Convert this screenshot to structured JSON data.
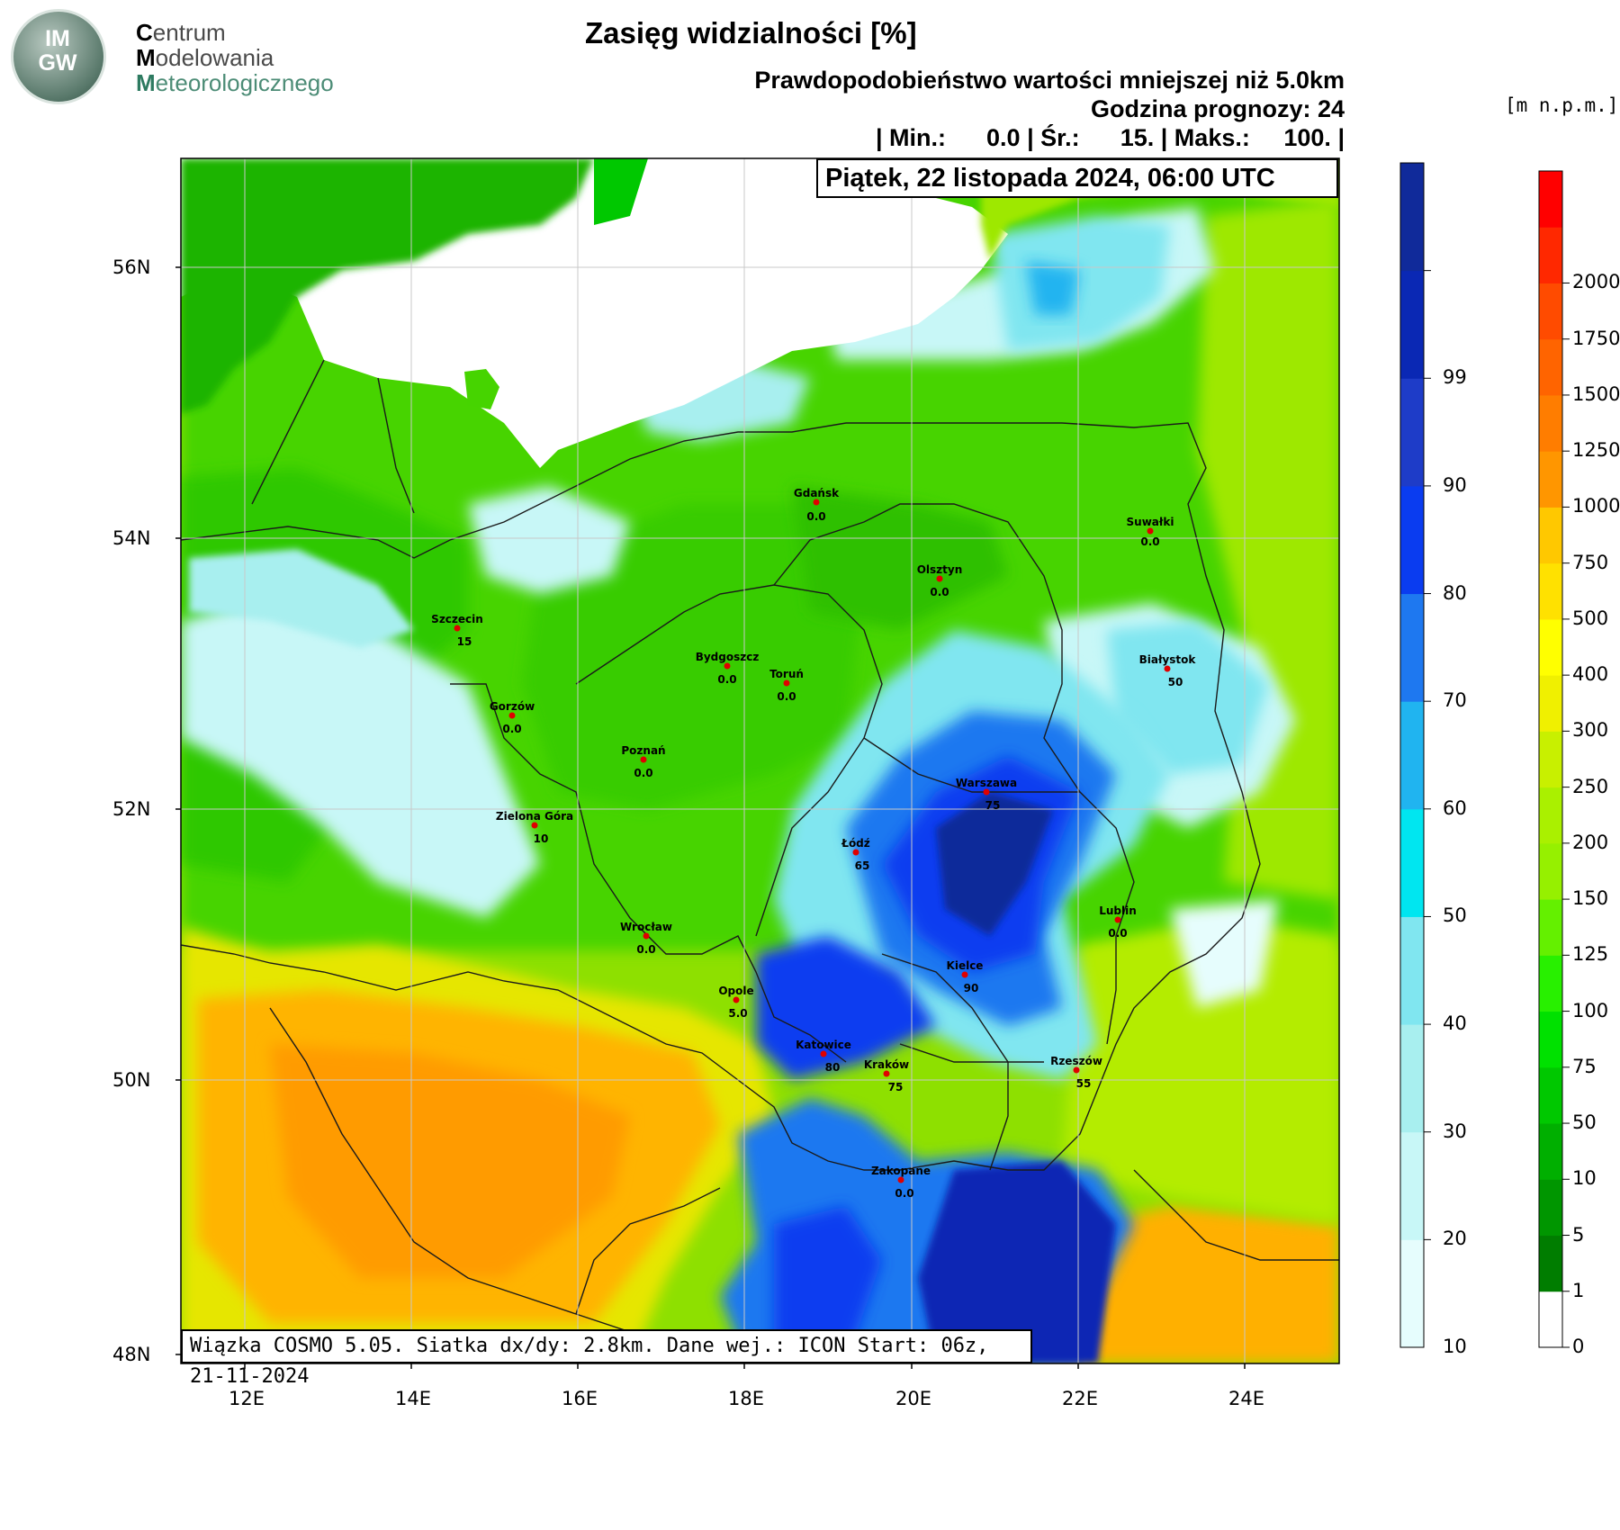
{
  "logo": {
    "text_top": "IM",
    "text_bottom": "GW",
    "brand": [
      "Centrum",
      "Modelowania",
      "Meteorologicznego"
    ],
    "brand_initials": [
      "C",
      "M",
      "M"
    ],
    "brand_rest": [
      "entrum",
      "odelowania",
      "eteorologicznego"
    ]
  },
  "header": {
    "title": "Zasięg widzialności [%]",
    "subtitle": "Prawdopodobieństwo wartości mniejszej niż 5.0km",
    "forecast_hour": "Godzina prognozy: 24",
    "stats": {
      "min_label": "| Min.:",
      "min": "0.0",
      "avg_label": "| Śr.:",
      "avg": "15.",
      "max_label": "| Maks.:",
      "max": "100.",
      "end": "|"
    },
    "date": "Piątek, 22 listopada 2024, 06:00 UTC"
  },
  "footer": "Wiązka COSMO 5.05. Siatka dx/dy: 2.8km. Dane wej.: ICON Start: 06z, 21-11-2024",
  "map": {
    "lat_labels": [
      "56N",
      "54N",
      "52N",
      "50N",
      "48N"
    ],
    "lon_labels": [
      "12E",
      "14E",
      "16E",
      "18E",
      "20E",
      "22E",
      "24E"
    ],
    "cities": [
      {
        "name": "Gdańsk",
        "value": "0.0"
      },
      {
        "name": "Suwałki",
        "value": "0.0"
      },
      {
        "name": "Olsztyn",
        "value": "0.0"
      },
      {
        "name": "Szczecin",
        "value": "15"
      },
      {
        "name": "Białystok",
        "value": "50"
      },
      {
        "name": "Bydgoszcz",
        "value": "0.0"
      },
      {
        "name": "Toruń",
        "value": "0.0"
      },
      {
        "name": "Gorzów",
        "value": "0.0"
      },
      {
        "name": "Poznań",
        "value": "0.0"
      },
      {
        "name": "Warszawa",
        "value": "75"
      },
      {
        "name": "Zielona Góra",
        "value": "10"
      },
      {
        "name": "Łódź",
        "value": "65"
      },
      {
        "name": "Lublin",
        "value": "0.0"
      },
      {
        "name": "Wrocław",
        "value": "0.0"
      },
      {
        "name": "Kielce",
        "value": "90"
      },
      {
        "name": "Opole",
        "value": "5.0"
      },
      {
        "name": "Katowice",
        "value": "80"
      },
      {
        "name": "Kraków",
        "value": "75"
      },
      {
        "name": "Rzeszów",
        "value": "55"
      },
      {
        "name": "Zakopane",
        "value": "0.0"
      }
    ]
  },
  "colorbar_prob": {
    "labels": [
      "10",
      "20",
      "30",
      "40",
      "50",
      "60",
      "70",
      "80",
      "90",
      "99"
    ],
    "colors": [
      "#e6fdfd",
      "#c8f7f7",
      "#a8efef",
      "#80e6f0",
      "#00e6f0",
      "#20b4f0",
      "#1e78f0",
      "#0a3cf0",
      "#1e3cc8",
      "#0a28b4",
      "#102a9a"
    ]
  },
  "colorbar_elev": {
    "units": "[m n.p.m.]",
    "labels": [
      "0",
      "1",
      "5",
      "10",
      "50",
      "75",
      "100",
      "125",
      "150",
      "200",
      "250",
      "300",
      "400",
      "500",
      "750",
      "1000",
      "1250",
      "1500",
      "1750",
      "2000"
    ],
    "colors": [
      "#ffffff",
      "#007d00",
      "#009600",
      "#00af00",
      "#00c800",
      "#00e100",
      "#28f000",
      "#64f000",
      "#96f000",
      "#aaf000",
      "#c8f000",
      "#f0f000",
      "#ffff00",
      "#ffe100",
      "#ffc800",
      "#ff9600",
      "#ff7d00",
      "#ff6400",
      "#ff4b00",
      "#ff2800",
      "#ff0000"
    ]
  }
}
